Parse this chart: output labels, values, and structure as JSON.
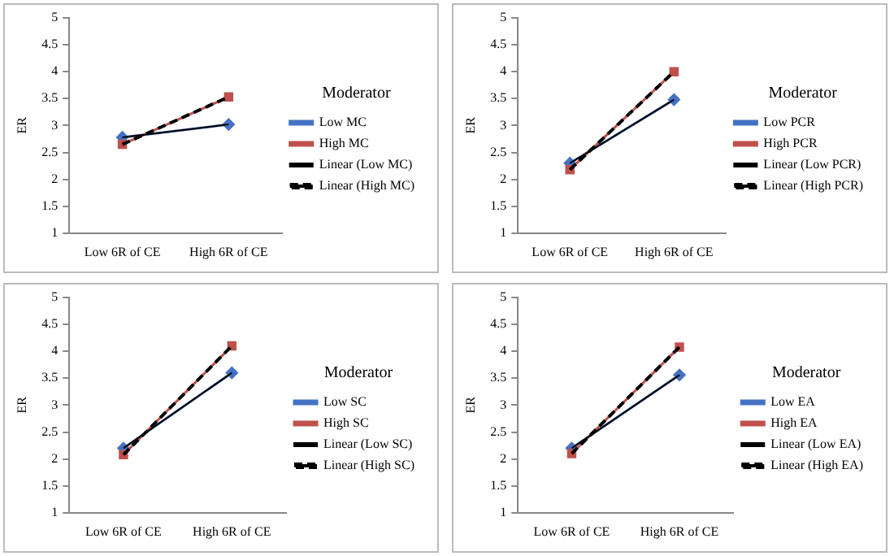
{
  "chart_data": [
    {
      "type": "line",
      "ylabel": "ER",
      "legend_title": "Moderator",
      "categories": [
        "Low 6R of CE",
        "High 6R of CE"
      ],
      "ylim": [
        1,
        5
      ],
      "yticks": [
        1,
        1.5,
        2,
        2.5,
        3,
        3.5,
        4,
        4.5,
        5
      ],
      "grid": false,
      "legend": "right",
      "series": [
        {
          "name": "Low MC",
          "color": "#4472c4",
          "values": [
            2.78,
            3.02
          ],
          "marker": "diamond",
          "line_style": "solid"
        },
        {
          "name": "High MC",
          "color": "#c0504d",
          "values": [
            2.65,
            3.53
          ],
          "marker": "square",
          "line_style": "solid"
        },
        {
          "name": "Linear (Low MC)",
          "color": "#000000",
          "values": [
            2.78,
            3.02
          ],
          "marker": "none",
          "line_style": "solid"
        },
        {
          "name": "Linear (High MC)",
          "color": "#000000",
          "values": [
            2.65,
            3.53
          ],
          "marker": "none",
          "line_style": "dashed"
        }
      ]
    },
    {
      "type": "line",
      "ylabel": "ER",
      "legend_title": "Moderator",
      "categories": [
        "Low 6R of CE",
        "High 6R of CE"
      ],
      "ylim": [
        1,
        5
      ],
      "yticks": [
        1,
        1.5,
        2,
        2.5,
        3,
        3.5,
        4,
        4.5,
        5
      ],
      "grid": false,
      "legend": "right",
      "series": [
        {
          "name": "Low PCR",
          "color": "#4472c4",
          "values": [
            2.3,
            3.48
          ],
          "marker": "diamond",
          "line_style": "solid"
        },
        {
          "name": "High PCR",
          "color": "#c0504d",
          "values": [
            2.18,
            4.0
          ],
          "marker": "square",
          "line_style": "solid"
        },
        {
          "name": "Linear (Low PCR)",
          "color": "#000000",
          "values": [
            2.3,
            3.48
          ],
          "marker": "none",
          "line_style": "solid"
        },
        {
          "name": "Linear (High PCR)",
          "color": "#000000",
          "values": [
            2.18,
            4.0
          ],
          "marker": "none",
          "line_style": "dashed"
        }
      ]
    },
    {
      "type": "line",
      "ylabel": "ER",
      "legend_title": "Moderator",
      "categories": [
        "Low 6R of CE",
        "High 6R of CE"
      ],
      "ylim": [
        1,
        5
      ],
      "yticks": [
        1,
        1.5,
        2,
        2.5,
        3,
        3.5,
        4,
        4.5,
        5
      ],
      "grid": false,
      "legend": "right",
      "series": [
        {
          "name": "Low SC",
          "color": "#4472c4",
          "values": [
            2.2,
            3.6
          ],
          "marker": "diamond",
          "line_style": "solid"
        },
        {
          "name": "High SC",
          "color": "#c0504d",
          "values": [
            2.08,
            4.1
          ],
          "marker": "square",
          "line_style": "solid"
        },
        {
          "name": "Linear (Low SC)",
          "color": "#000000",
          "values": [
            2.2,
            3.6
          ],
          "marker": "none",
          "line_style": "solid"
        },
        {
          "name": "Linear (High SC)",
          "color": "#000000",
          "values": [
            2.08,
            4.1
          ],
          "marker": "none",
          "line_style": "dashed"
        }
      ]
    },
    {
      "type": "line",
      "ylabel": "ER",
      "legend_title": "Moderator",
      "categories": [
        "Low 6R of CE",
        "High 6R of CE"
      ],
      "ylim": [
        1,
        5
      ],
      "yticks": [
        1,
        1.5,
        2,
        2.5,
        3,
        3.5,
        4,
        4.5,
        5
      ],
      "grid": false,
      "legend": "right",
      "series": [
        {
          "name": "Low EA",
          "color": "#4472c4",
          "values": [
            2.2,
            3.56
          ],
          "marker": "diamond",
          "line_style": "solid"
        },
        {
          "name": "High EA",
          "color": "#c0504d",
          "values": [
            2.1,
            4.08
          ],
          "marker": "square",
          "line_style": "solid"
        },
        {
          "name": "Linear (Low EA)",
          "color": "#000000",
          "values": [
            2.2,
            3.56
          ],
          "marker": "none",
          "line_style": "solid"
        },
        {
          "name": "Linear (High EA)",
          "color": "#000000",
          "values": [
            2.1,
            4.08
          ],
          "marker": "none",
          "line_style": "dashed"
        }
      ]
    }
  ]
}
